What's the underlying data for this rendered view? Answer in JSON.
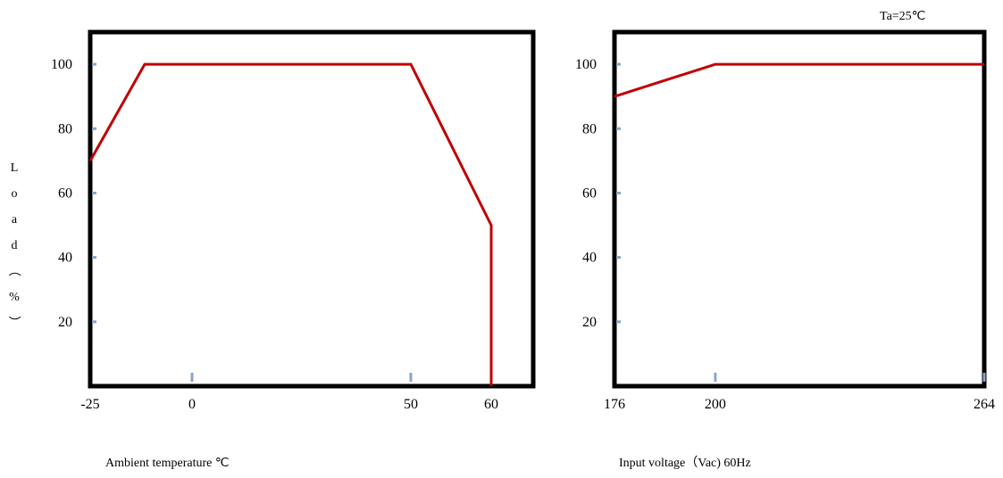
{
  "chart_data": [
    {
      "type": "line",
      "title": "",
      "xlabel": "Ambient temperature ℃",
      "ylabel": "Load（%）",
      "xlim": [
        -25,
        85
      ],
      "ylim": [
        0,
        110
      ],
      "xticks": [
        -25,
        0,
        50,
        60
      ],
      "yticks": [
        20,
        40,
        60,
        80,
        100
      ],
      "series": [
        {
          "color": "#c00000",
          "x": [
            -25,
            -12,
            50,
            60,
            60
          ],
          "y": [
            70,
            100,
            100,
            50,
            0
          ]
        }
      ],
      "grid": false
    },
    {
      "type": "line",
      "title": "",
      "annotation": "Ta=25℃",
      "xlabel": "Input voltage（Vac) 60Hz",
      "ylabel": "",
      "xlim": [
        176,
        264
      ],
      "ylim": [
        0,
        110
      ],
      "xticks": [
        176,
        200,
        264
      ],
      "yticks": [
        20,
        40,
        60,
        80,
        100
      ],
      "series": [
        {
          "color": "#c00000",
          "x": [
            176,
            200,
            264
          ],
          "y": [
            90,
            100,
            100
          ]
        }
      ],
      "grid": false
    }
  ],
  "colors": {
    "frame": "#000000",
    "line": "#c00000",
    "tick_marker": "#8aa4c8"
  }
}
